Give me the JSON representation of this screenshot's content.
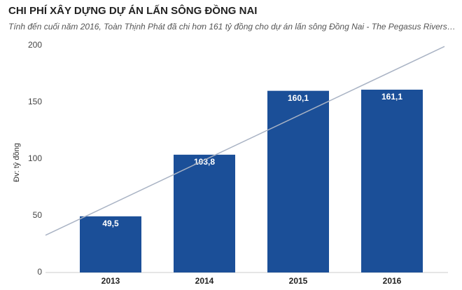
{
  "chart_data": {
    "type": "bar",
    "title": "CHI PHÍ XÂY DỰNG DỰ ÁN LẤN SÔNG ĐỒNG NAI",
    "subtitle": "Tính đến cuối năm 2016, Toàn Thịnh Phát đã chi hơn 161 tỷ đồng cho dự án lấn sông Đồng Nai - The Pegasus Rivers…",
    "y_label": "Đv: tỷ đồng",
    "categories": [
      "2013",
      "2014",
      "2015",
      "2016"
    ],
    "values": [
      49.5,
      103.8,
      160.1,
      161.1
    ],
    "value_labels": [
      "49,5",
      "103,8",
      "160,1",
      "161,1"
    ],
    "color": "#1b4f98",
    "trendline": true,
    "ylim": [
      0,
      200
    ],
    "yticks": [
      0,
      50,
      100,
      150,
      200
    ]
  }
}
